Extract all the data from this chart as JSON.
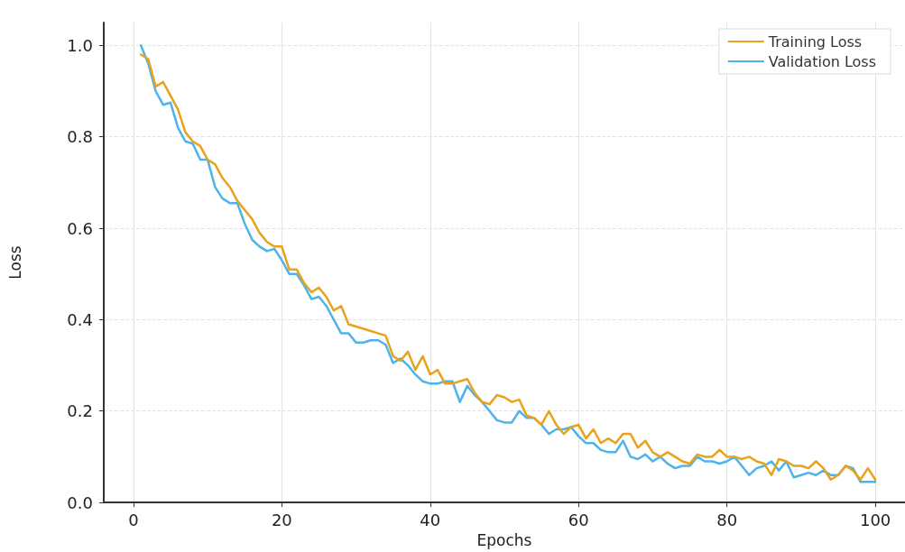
{
  "chart_data": {
    "type": "line",
    "xlabel": "Epochs",
    "ylabel": "Loss",
    "x": [
      1,
      2,
      3,
      4,
      5,
      6,
      7,
      8,
      9,
      10,
      11,
      12,
      13,
      14,
      15,
      16,
      17,
      18,
      19,
      20,
      21,
      22,
      23,
      24,
      25,
      26,
      27,
      28,
      29,
      30,
      31,
      32,
      33,
      34,
      35,
      36,
      37,
      38,
      39,
      40,
      41,
      42,
      43,
      44,
      45,
      46,
      47,
      48,
      49,
      50,
      51,
      52,
      53,
      54,
      55,
      56,
      57,
      58,
      59,
      60,
      61,
      62,
      63,
      64,
      65,
      66,
      67,
      68,
      69,
      70,
      71,
      72,
      73,
      74,
      75,
      76,
      77,
      78,
      79,
      80,
      81,
      82,
      83,
      84,
      85,
      86,
      87,
      88,
      89,
      90,
      91,
      92,
      93,
      94,
      95,
      96,
      97,
      98,
      99,
      100
    ],
    "series": [
      {
        "name": "Training Loss",
        "color": "#e8a21c",
        "values": [
          0.98,
          0.97,
          0.91,
          0.92,
          0.89,
          0.86,
          0.81,
          0.79,
          0.78,
          0.75,
          0.74,
          0.71,
          0.69,
          0.66,
          0.64,
          0.62,
          0.59,
          0.57,
          0.56,
          0.56,
          0.51,
          0.51,
          0.48,
          0.46,
          0.47,
          0.45,
          0.42,
          0.43,
          0.39,
          0.385,
          0.38,
          0.375,
          0.37,
          0.365,
          0.32,
          0.31,
          0.33,
          0.29,
          0.32,
          0.28,
          0.29,
          0.26,
          0.26,
          0.265,
          0.27,
          0.24,
          0.22,
          0.215,
          0.235,
          0.23,
          0.22,
          0.225,
          0.19,
          0.185,
          0.17,
          0.2,
          0.17,
          0.15,
          0.165,
          0.17,
          0.14,
          0.16,
          0.13,
          0.14,
          0.13,
          0.15,
          0.15,
          0.12,
          0.135,
          0.11,
          0.1,
          0.11,
          0.1,
          0.09,
          0.085,
          0.105,
          0.1,
          0.1,
          0.115,
          0.1,
          0.1,
          0.095,
          0.1,
          0.09,
          0.085,
          0.06,
          0.095,
          0.09,
          0.08,
          0.08,
          0.075,
          0.09,
          0.075,
          0.05,
          0.06,
          0.08,
          0.07,
          0.05,
          0.075,
          0.05
        ]
      },
      {
        "name": "Validation Loss",
        "color": "#4db4ea",
        "values": [
          1.0,
          0.96,
          0.9,
          0.87,
          0.875,
          0.82,
          0.79,
          0.785,
          0.75,
          0.75,
          0.69,
          0.665,
          0.655,
          0.655,
          0.61,
          0.575,
          0.56,
          0.55,
          0.555,
          0.53,
          0.5,
          0.5,
          0.475,
          0.445,
          0.45,
          0.43,
          0.4,
          0.37,
          0.37,
          0.35,
          0.35,
          0.355,
          0.355,
          0.345,
          0.305,
          0.315,
          0.3,
          0.28,
          0.265,
          0.26,
          0.26,
          0.265,
          0.265,
          0.22,
          0.255,
          0.235,
          0.22,
          0.2,
          0.18,
          0.175,
          0.175,
          0.2,
          0.185,
          0.185,
          0.17,
          0.15,
          0.16,
          0.16,
          0.165,
          0.145,
          0.13,
          0.13,
          0.115,
          0.11,
          0.11,
          0.135,
          0.1,
          0.095,
          0.105,
          0.09,
          0.1,
          0.085,
          0.075,
          0.08,
          0.08,
          0.1,
          0.09,
          0.09,
          0.085,
          0.09,
          0.1,
          0.08,
          0.06,
          0.075,
          0.08,
          0.09,
          0.07,
          0.09,
          0.055,
          0.06,
          0.065,
          0.06,
          0.07,
          0.06,
          0.06,
          0.08,
          0.075,
          0.045,
          0.045,
          0.045
        ]
      }
    ],
    "xlim": [
      -4,
      104
    ],
    "xticks": [
      0,
      20,
      40,
      60,
      80,
      100
    ],
    "ylim": [
      0,
      1.05
    ],
    "yticks": [
      {
        "value": 0,
        "label": "0.0"
      },
      {
        "value": 0.2,
        "label": "0.2"
      },
      {
        "value": 0.4,
        "label": "0.4"
      },
      {
        "value": 0.6,
        "label": "0.6"
      },
      {
        "value": 0.8,
        "label": "0.8"
      },
      {
        "value": 1,
        "label": "1.0"
      }
    ],
    "grid": true,
    "legend": "top right",
    "marker": "none",
    "line_style": "solid"
  }
}
